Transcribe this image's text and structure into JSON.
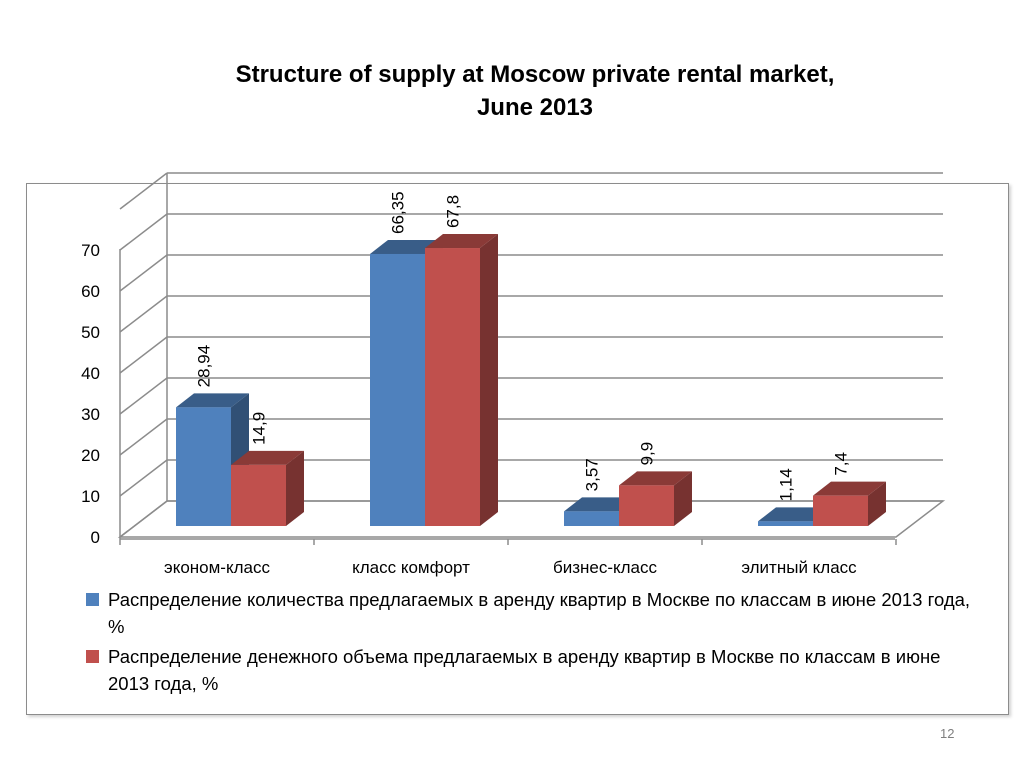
{
  "title_line1": "Structure of supply at Moscow private rental market,",
  "title_line2": "June 2013",
  "page_number": "12",
  "colors": {
    "series1": "#4f81bd",
    "series2": "#c0504d"
  },
  "chart_data": {
    "type": "bar",
    "title": "Structure of supply at Moscow private rental market, June 2013",
    "categories": [
      "эконом-класс",
      "класс комфорт",
      "бизнес-класс",
      "элитный класс"
    ],
    "series": [
      {
        "name": "Распределение количества предлагаемых в аренду квартир в Москве по классам в июне 2013 года, %",
        "values": [
          28.94,
          66.35,
          3.57,
          1.14
        ],
        "labels": [
          "28,94",
          "66,35",
          "3,57",
          "1,14"
        ]
      },
      {
        "name": "Распределение денежного объема предлагаемых в аренду квартир в Москве по классам в июне 2013 года, %",
        "values": [
          14.9,
          67.8,
          9.9,
          7.4
        ],
        "labels": [
          "14,9",
          "67,8",
          "9,9",
          "7,4"
        ]
      }
    ],
    "yticks": [
      "0",
      "10",
      "20",
      "30",
      "40",
      "50",
      "60",
      "70"
    ],
    "ylim": [
      0,
      70
    ],
    "grid": true,
    "legend_position": "bottom"
  }
}
